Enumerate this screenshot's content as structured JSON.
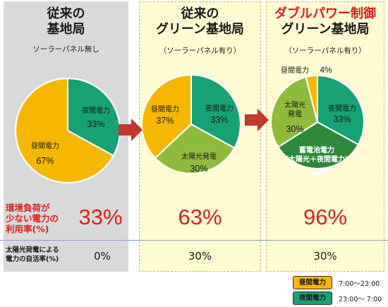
{
  "panels": [
    {
      "title_lines": [
        "従来の",
        "基地局"
      ],
      "subtitle": "ソーラーパネル無し",
      "title_red": ""
    },
    {
      "title_lines": [
        "従来の",
        "グリーン基地局"
      ],
      "subtitle": "（ソーラーパネル有り）",
      "title_red": ""
    },
    {
      "title_lines": [
        "グリーン基地局"
      ],
      "subtitle": "（ソーラーパネル有り）",
      "title_red": "ダブルパワー制御"
    }
  ],
  "row_labels": {
    "usage_rate_lines": [
      "環境負荷が",
      "少ない電力の",
      "利用率(%)"
    ],
    "self_sufficiency_lines": [
      "太陽光発電による",
      "電力の自活率(%)"
    ]
  },
  "usage_rate": [
    "33%",
    "63%",
    "96%"
  ],
  "self_sufficiency": [
    "0%",
    "30%",
    "30%"
  ],
  "legend": [
    {
      "label": "昼間電力",
      "time": "7:00〜23:00",
      "color": "#f5b700"
    },
    {
      "label": "夜間電力",
      "time": "23:00〜 7:00",
      "color": "#17a276"
    }
  ],
  "colors": {
    "daytime": "#f5b700",
    "nighttime": "#17a276",
    "solar": "#8fbb3c",
    "battery": "#2e8a3a",
    "arrow": "#c0392b",
    "accent_red": "#e0201b"
  },
  "chart_data": [
    {
      "type": "pie",
      "slices": [
        {
          "label": "夜間電力",
          "value": 33,
          "value_label": "33%",
          "color": "#17a276"
        },
        {
          "label": "昼間電力",
          "value": 67,
          "value_label": "67%",
          "color": "#f5b700"
        }
      ]
    },
    {
      "type": "pie",
      "slices": [
        {
          "label": "夜間電力",
          "value": 33,
          "value_label": "33%",
          "color": "#17a276"
        },
        {
          "label": "太陽光発電",
          "value": 30,
          "value_label": "30%",
          "color": "#8fbb3c"
        },
        {
          "label": "昼間電力",
          "value": 37,
          "value_label": "37%",
          "color": "#f5b700"
        }
      ]
    },
    {
      "type": "pie",
      "slices": [
        {
          "label": "夜間電力",
          "value": 33,
          "value_label": "33%",
          "color": "#17a276"
        },
        {
          "label": "蓄電池電力\n（太陽光＋夜間電力）",
          "value": 33,
          "value_label": "33%",
          "color": "#2e8a3a"
        },
        {
          "label": "太陽光\n発電",
          "value": 30,
          "value_label": "30%",
          "color": "#8fbb3c"
        },
        {
          "label": "昼間電力",
          "value": 4,
          "value_label": "4%",
          "color": "#f5b700"
        }
      ]
    }
  ]
}
